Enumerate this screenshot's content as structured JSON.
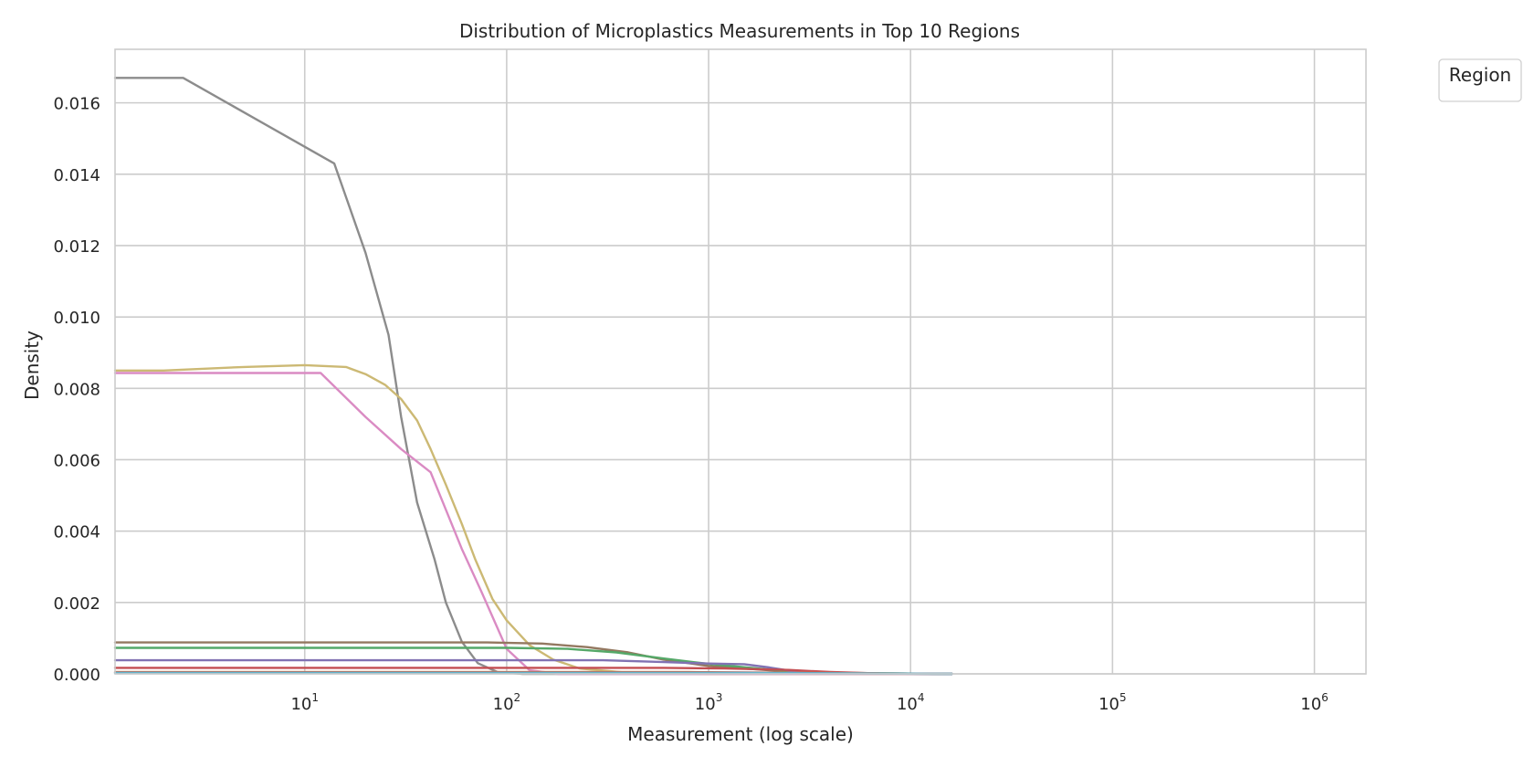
{
  "chart_data": {
    "type": "line",
    "title": "Distribution of Microplastics Measurements in Top 10 Regions",
    "xlabel": "Measurement (log scale)",
    "ylabel": "Density",
    "xscale": "log",
    "xlim": [
      1.15,
      1800000
    ],
    "ylim": [
      0,
      0.0175
    ],
    "x_ticks": [
      {
        "base": "10",
        "exp": "1",
        "value": 10
      },
      {
        "base": "10",
        "exp": "2",
        "value": 100
      },
      {
        "base": "10",
        "exp": "3",
        "value": 1000
      },
      {
        "base": "10",
        "exp": "4",
        "value": 10000
      },
      {
        "base": "10",
        "exp": "5",
        "value": 100000
      },
      {
        "base": "10",
        "exp": "6",
        "value": 1000000
      }
    ],
    "y_ticks": [
      {
        "label": "0.000",
        "value": 0
      },
      {
        "label": "0.002",
        "value": 0.002
      },
      {
        "label": "0.004",
        "value": 0.004
      },
      {
        "label": "0.006",
        "value": 0.006
      },
      {
        "label": "0.008",
        "value": 0.008
      },
      {
        "label": "0.010",
        "value": 0.01
      },
      {
        "label": "0.012",
        "value": 0.012
      },
      {
        "label": "0.014",
        "value": 0.014
      },
      {
        "label": "0.016",
        "value": 0.016
      }
    ],
    "grid": true,
    "legend": {
      "title": "Region",
      "placement": "outside-top-right",
      "entries": []
    },
    "series": [
      {
        "color": "#8c8c8c",
        "points": [
          [
            1.15,
            0.0167
          ],
          [
            2.5,
            0.0167
          ],
          [
            14,
            0.0143
          ],
          [
            20,
            0.0118
          ],
          [
            26,
            0.0095
          ],
          [
            30,
            0.0072
          ],
          [
            36,
            0.0048
          ],
          [
            44,
            0.0032
          ],
          [
            50,
            0.002
          ],
          [
            60,
            0.0009
          ],
          [
            72,
            0.0003
          ],
          [
            90,
            5e-05
          ],
          [
            120,
            0.0
          ],
          [
            16000,
            0.0
          ]
        ]
      },
      {
        "color": "#ccb974",
        "points": [
          [
            1.15,
            0.0085
          ],
          [
            2,
            0.0085
          ],
          [
            5,
            0.0086
          ],
          [
            10,
            0.00865
          ],
          [
            16,
            0.0086
          ],
          [
            20,
            0.0084
          ],
          [
            25,
            0.0081
          ],
          [
            30,
            0.0077
          ],
          [
            36,
            0.0071
          ],
          [
            42,
            0.0063
          ],
          [
            50,
            0.0053
          ],
          [
            60,
            0.0042
          ],
          [
            70,
            0.0032
          ],
          [
            85,
            0.0021
          ],
          [
            100,
            0.0015
          ],
          [
            130,
            0.0008
          ],
          [
            170,
            0.0004
          ],
          [
            230,
            0.00015
          ],
          [
            400,
            3e-05
          ],
          [
            1000,
            0.0
          ],
          [
            16000,
            0.0
          ]
        ]
      },
      {
        "color": "#da8bc3",
        "points": [
          [
            1.15,
            0.00843
          ],
          [
            12,
            0.00843
          ],
          [
            20,
            0.0072
          ],
          [
            30,
            0.0063
          ],
          [
            42,
            0.00565
          ],
          [
            50,
            0.0046
          ],
          [
            60,
            0.0035
          ],
          [
            75,
            0.0023
          ],
          [
            100,
            0.0007
          ],
          [
            130,
            0.0001
          ],
          [
            180,
            0.0
          ],
          [
            16000,
            0.0
          ]
        ]
      },
      {
        "color": "#937860",
        "points": [
          [
            1.15,
            0.00088
          ],
          [
            80,
            0.00088
          ],
          [
            150,
            0.00085
          ],
          [
            250,
            0.00075
          ],
          [
            400,
            0.0006
          ],
          [
            600,
            0.0004
          ],
          [
            1000,
            0.00022
          ],
          [
            2000,
            0.0001
          ],
          [
            4000,
            3e-05
          ],
          [
            8000,
            1e-05
          ],
          [
            16000,
            0.0
          ]
        ]
      },
      {
        "color": "#55a868",
        "points": [
          [
            1.15,
            0.00073
          ],
          [
            100,
            0.00073
          ],
          [
            200,
            0.0007
          ],
          [
            350,
            0.0006
          ],
          [
            600,
            0.00043
          ],
          [
            1000,
            0.00028
          ],
          [
            2000,
            0.00012
          ],
          [
            4000,
            3e-05
          ],
          [
            16000,
            0.0
          ]
        ]
      },
      {
        "color": "#8172b3",
        "points": [
          [
            1.15,
            0.00038
          ],
          [
            300,
            0.00038
          ],
          [
            600,
            0.00033
          ],
          [
            1000,
            0.00029
          ],
          [
            1500,
            0.00027
          ],
          [
            2000,
            0.00018
          ],
          [
            2600,
            8e-05
          ],
          [
            4000,
            2e-05
          ],
          [
            16000,
            0.0
          ]
        ]
      },
      {
        "color": "#c44e52",
        "points": [
          [
            1.15,
            0.00017
          ],
          [
            600,
            0.00017
          ],
          [
            1200,
            0.00015
          ],
          [
            2500,
            0.00011
          ],
          [
            4000,
            5e-05
          ],
          [
            7000,
            1e-05
          ],
          [
            16000,
            0.0
          ]
        ]
      },
      {
        "color": "#dd8452",
        "points": [
          [
            1.15,
            5e-05
          ],
          [
            800,
            5e-05
          ],
          [
            2500,
            3e-05
          ],
          [
            8000,
            1e-05
          ],
          [
            16000,
            0.0
          ]
        ]
      },
      {
        "color": "#4c72b0",
        "points": [
          [
            1.15,
            3e-05
          ],
          [
            1500,
            3e-05
          ],
          [
            5000,
            1e-05
          ],
          [
            16000,
            0.0
          ]
        ]
      },
      {
        "color": "#64b5cd",
        "points": [
          [
            1.15,
            2e-05
          ],
          [
            2000,
            2e-05
          ],
          [
            6000,
            1e-05
          ],
          [
            16000,
            0.0
          ]
        ]
      }
    ]
  }
}
